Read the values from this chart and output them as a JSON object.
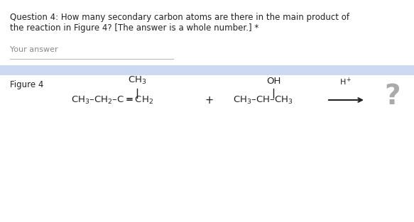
{
  "title_line1": "Question 4: How many secondary carbon atoms are there in the main product of",
  "title_line2": "the reaction in Figure 4? [The answer is a whole number.] *",
  "your_answer_label": "Your answer",
  "figure_label": "Figure 4",
  "bg_color": "#ffffff",
  "banner_color": "#cdd9f0",
  "text_color": "#222222",
  "gray_text": "#888888",
  "question_fontsize": 8.5,
  "answer_fontsize": 8.0,
  "figure_fontsize": 8.5,
  "chem_fontsize": 9.5
}
